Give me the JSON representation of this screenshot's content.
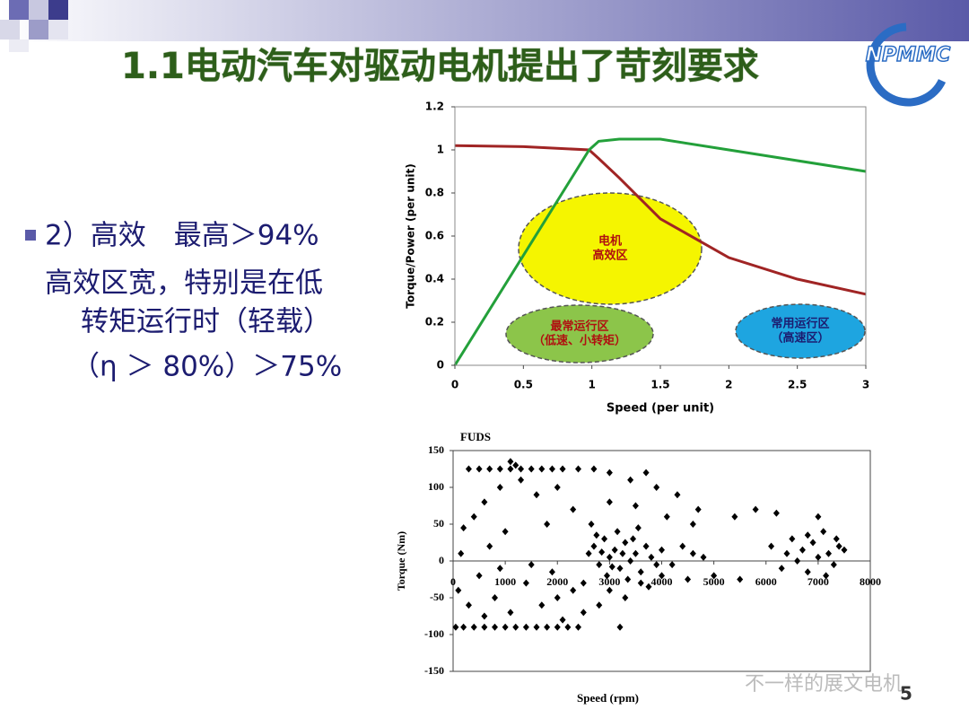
{
  "slide": {
    "title": "1.1电动汽车对驱动电机提出了苛刻要求",
    "logo": "NPMMC",
    "body": [
      "2）高效　最高＞94%",
      "高效区宽，特别是在低",
      "转矩运行时（轻载）",
      "（η ＞ 80%）＞75%"
    ],
    "watermark": "不一样的展文电机",
    "page_number": "5"
  },
  "chart_data": [
    {
      "type": "line",
      "xlabel": "Speed (per unit)",
      "ylabel": "Torque/Power (per unit)",
      "x": [
        0,
        0.5,
        0.98,
        1.05,
        1.2,
        1.5,
        2,
        2.5,
        3
      ],
      "series": [
        {
          "color": "#a02424",
          "values": [
            1.02,
            1.015,
            1.0,
            0.96,
            0.87,
            0.68,
            0.5,
            0.4,
            0.33
          ]
        },
        {
          "color": "#23a03a",
          "values": [
            0,
            0.51,
            1.0,
            1.04,
            1.05,
            1.05,
            1.0,
            0.95,
            0.9
          ]
        }
      ],
      "xlim": [
        0,
        3
      ],
      "xticks": [
        0,
        0.5,
        1,
        1.5,
        2,
        2.5,
        3
      ],
      "ylim": [
        0,
        1.2
      ],
      "yticks": [
        0,
        0.2,
        0.4,
        0.6,
        0.8,
        1,
        1.2
      ],
      "annotations": [
        [
          "电机",
          "高效区"
        ],
        [
          "最常运行区",
          "（低速、小转矩）"
        ],
        [
          "常用运行区",
          "（高速区）"
        ]
      ]
    },
    {
      "type": "scatter",
      "title": "FUDS",
      "xlabel": "Speed (rpm)",
      "ylabel": "Torque (Nm)",
      "color": "#000000",
      "x": [
        300,
        500,
        700,
        900,
        1100,
        1300,
        1500,
        1700,
        1900,
        2100,
        1200,
        1100,
        50,
        200,
        400,
        600,
        800,
        1000,
        1200,
        1400,
        1600,
        1800,
        2000,
        2200,
        2400,
        3200,
        200,
        400,
        600,
        900,
        1300,
        1600,
        2000,
        2400,
        2700,
        3000,
        3400,
        3700,
        3900,
        4300,
        4700,
        5400,
        5800,
        6200,
        4100,
        4600,
        3000,
        2300,
        1800,
        1000,
        700,
        150,
        3500,
        2600,
        2700,
        2800,
        2900,
        3000,
        3100,
        3200,
        3300,
        3400,
        3500,
        3600,
        3700,
        3800,
        3900,
        2750,
        2950,
        3150,
        3350,
        3450,
        3550,
        3250,
        3050,
        2850,
        4000,
        4200,
        4400,
        4600,
        4800,
        2500,
        2650,
        3750,
        100,
        300,
        500,
        800,
        1100,
        1400,
        1700,
        2000,
        2300,
        2500,
        2800,
        3000,
        3300,
        3600,
        4000,
        4500,
        5000,
        5500,
        900,
        1500,
        1900,
        600,
        2100,
        6100,
        6300,
        6500,
        6600,
        6700,
        6800,
        6900,
        7000,
        7100,
        7200,
        7300,
        7400,
        7500,
        7000,
        6400,
        6800,
        7150,
        7350
      ],
      "y": [
        125,
        125,
        125,
        125,
        125,
        125,
        125,
        125,
        125,
        125,
        130,
        135,
        -90,
        -90,
        -90,
        -90,
        -90,
        -90,
        -90,
        -90,
        -90,
        -90,
        -90,
        -90,
        -90,
        -90,
        45,
        60,
        80,
        100,
        110,
        90,
        100,
        125,
        125,
        120,
        110,
        120,
        100,
        90,
        70,
        60,
        70,
        65,
        60,
        50,
        80,
        70,
        50,
        40,
        20,
        10,
        75,
        10,
        20,
        -5,
        30,
        5,
        15,
        -10,
        25,
        0,
        10,
        -15,
        20,
        5,
        -5,
        35,
        -20,
        40,
        -25,
        30,
        45,
        10,
        -8,
        12,
        15,
        -5,
        20,
        10,
        5,
        -30,
        50,
        -35,
        -40,
        -60,
        -20,
        -50,
        -70,
        -30,
        -60,
        -50,
        -40,
        -70,
        -60,
        -40,
        -50,
        -30,
        -20,
        -25,
        -20,
        -25,
        -10,
        -5,
        -15,
        -75,
        -80,
        20,
        -10,
        30,
        0,
        15,
        -15,
        25,
        5,
        40,
        10,
        -5,
        20,
        15,
        60,
        10,
        35,
        -20,
        30
      ],
      "xlim": [
        0,
        8000
      ],
      "xticks": [
        0,
        1000,
        2000,
        3000,
        4000,
        5000,
        6000,
        7000,
        8000
      ],
      "ylim": [
        -150,
        150
      ],
      "yticks": [
        -150,
        -100,
        -50,
        0,
        50,
        100,
        150
      ]
    }
  ]
}
